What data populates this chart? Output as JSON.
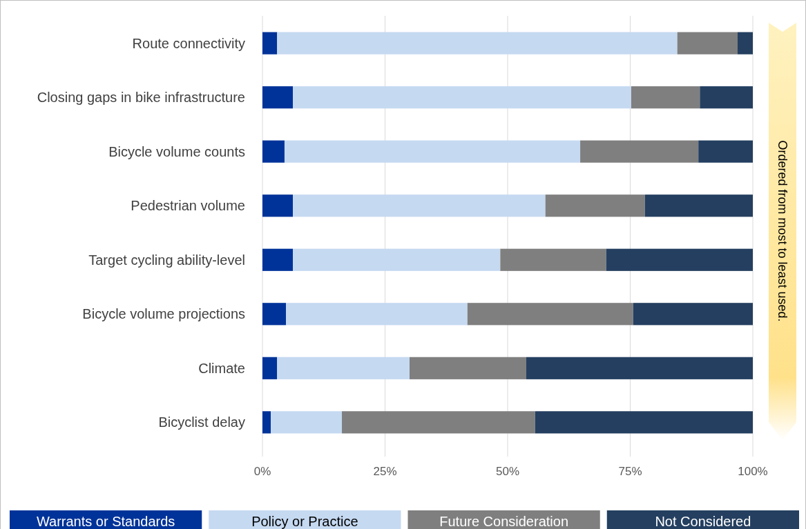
{
  "chart_data": {
    "type": "bar",
    "orientation": "horizontal",
    "stacked": true,
    "categories": [
      "Route connectivity",
      "Closing gaps in bike infrastructure",
      "Bicycle volume counts",
      "Pedestrian volume",
      "Target cycling ability-level",
      "Bicycle volume projections",
      "Climate",
      "Bicyclist delay"
    ],
    "series": [
      {
        "name": "Warrants or Standards",
        "color": "#003399",
        "values": [
          3.0,
          6.2,
          4.5,
          6.2,
          6.2,
          4.8,
          3.0,
          1.7
        ]
      },
      {
        "name": "Policy or Practice",
        "color": "#c5d9f1",
        "values": [
          81.6,
          69.0,
          60.3,
          51.5,
          42.3,
          37.0,
          27.0,
          14.5
        ]
      },
      {
        "name": "Future Consideration",
        "color": "#7f7f7f",
        "values": [
          12.3,
          14.0,
          24.1,
          20.3,
          21.6,
          33.8,
          23.8,
          39.4
        ]
      },
      {
        "name": "Not Considered",
        "color": "#243f60",
        "values": [
          3.1,
          10.8,
          11.1,
          22.0,
          29.9,
          24.4,
          46.2,
          44.4
        ]
      }
    ],
    "xlim": [
      0,
      100
    ],
    "xticks": [
      {
        "value": 0,
        "label": "0%"
      },
      {
        "value": 25,
        "label": "25%"
      },
      {
        "value": 50,
        "label": "50%"
      },
      {
        "value": 75,
        "label": "75%"
      },
      {
        "value": 100,
        "label": "100%"
      }
    ],
    "grid": "x",
    "legend": "bottom",
    "annotations": [
      "Ordered from most to least used."
    ]
  }
}
